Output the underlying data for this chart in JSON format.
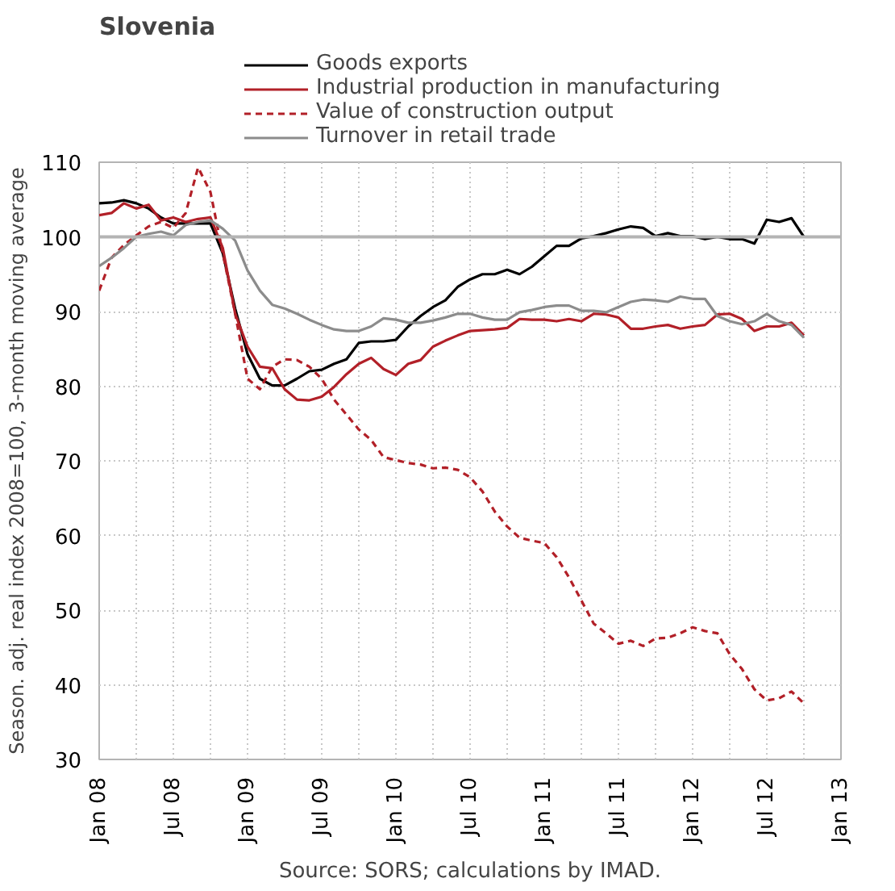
{
  "chart_data": {
    "type": "line",
    "title": "Slovenia",
    "ylabel": "Season. adj. real index 2008=100, 3-month moving average",
    "annotations": [
      "Source: SORS; calculations by IMAD."
    ],
    "x": [
      "2008-01",
      "2008-02",
      "2008-03",
      "2008-04",
      "2008-05",
      "2008-06",
      "2008-07",
      "2008-08",
      "2008-09",
      "2008-10",
      "2008-11",
      "2008-12",
      "2009-01",
      "2009-02",
      "2009-03",
      "2009-04",
      "2009-05",
      "2009-06",
      "2009-07",
      "2009-08",
      "2009-09",
      "2009-10",
      "2009-11",
      "2009-12",
      "2010-01",
      "2010-02",
      "2010-03",
      "2010-04",
      "2010-05",
      "2010-06",
      "2010-07",
      "2010-08",
      "2010-09",
      "2010-10",
      "2010-11",
      "2010-12",
      "2011-01",
      "2011-02",
      "2011-03",
      "2011-04",
      "2011-05",
      "2011-06",
      "2011-07",
      "2011-08",
      "2011-09",
      "2011-10",
      "2011-11",
      "2011-12",
      "2012-01",
      "2012-02",
      "2012-03",
      "2012-04",
      "2012-05",
      "2012-06",
      "2012-07",
      "2012-08",
      "2012-09",
      "2012-10"
    ],
    "series": [
      {
        "name": "Goods exports",
        "color": "#000000",
        "line_style": "solid",
        "values": [
          104.5,
          104.6,
          104.9,
          104.5,
          103.8,
          102.6,
          101.8,
          101.8,
          101.8,
          101.8,
          97.8,
          90.4,
          84.3,
          81,
          80.1,
          80.1,
          81,
          82,
          82.2,
          83,
          83.6,
          85.8,
          86,
          86,
          86.2,
          88,
          89.4,
          90.6,
          91.5,
          93.3,
          94.3,
          95,
          95,
          95.6,
          95,
          96,
          97.4,
          98.8,
          98.8,
          99.8,
          100.1,
          100.5,
          101,
          101.4,
          101.2,
          100.1,
          100.5,
          100.1,
          100.1,
          99.7,
          100,
          99.7,
          99.7,
          99.1,
          102.3,
          102,
          102.5,
          100
        ]
      },
      {
        "name": "Industrial production in manufacturing",
        "color": "#b22028",
        "line_style": "solid",
        "values": [
          102.9,
          103.2,
          104.5,
          103.8,
          104.3,
          102.2,
          102.6,
          102,
          102.4,
          102.6,
          98.5,
          89.7,
          85.3,
          82.6,
          82.4,
          79.6,
          78.2,
          78.1,
          78.6,
          79.9,
          81.6,
          83,
          83.8,
          82.3,
          81.5,
          83,
          83.5,
          85.3,
          86.1,
          86.8,
          87.4,
          87.5,
          87.6,
          87.8,
          89,
          88.9,
          88.9,
          88.7,
          89,
          88.7,
          89.7,
          89.6,
          89.2,
          87.7,
          87.7,
          88,
          88.2,
          87.7,
          88,
          88.2,
          89.6,
          89.7,
          89,
          87.4,
          88,
          88,
          88.5,
          86.8
        ]
      },
      {
        "name": "Value of construction output",
        "color": "#b22028",
        "line_style": "dashed",
        "values": [
          92.8,
          97.2,
          98.9,
          100.2,
          101.4,
          102,
          101.2,
          103.2,
          109.3,
          106,
          97.8,
          89.7,
          81,
          79.6,
          82.6,
          83.6,
          83.5,
          82.6,
          81,
          78.2,
          76.2,
          74.2,
          72.8,
          70.5,
          70.1,
          69.7,
          69.5,
          69,
          69.1,
          68.8,
          67.8,
          65.9,
          63.2,
          61.2,
          59.7,
          59.3,
          59,
          57.1,
          54.4,
          51.3,
          48.2,
          46.9,
          45.5,
          45.9,
          45.2,
          46.2,
          46.3,
          46.9,
          47.7,
          47.2,
          46.9,
          44.1,
          42.1,
          39.4,
          37.9,
          38.2,
          39.1,
          37.5
        ]
      },
      {
        "name": "Turnover in retail trade",
        "color": "#8c8c8c",
        "line_style": "solid",
        "values": [
          96.1,
          97.2,
          98.5,
          100,
          100.4,
          100.7,
          100.2,
          101.6,
          102,
          102.2,
          101.1,
          99.5,
          95.5,
          92.8,
          90.9,
          90.4,
          89.7,
          88.9,
          88.2,
          87.6,
          87.4,
          87.4,
          88,
          89.1,
          88.9,
          88.5,
          88.5,
          88.8,
          89.2,
          89.7,
          89.7,
          89.2,
          88.9,
          88.9,
          89.9,
          90.2,
          90.6,
          90.8,
          90.8,
          90.1,
          90.1,
          89.9,
          90.6,
          91.3,
          91.6,
          91.5,
          91.3,
          92,
          91.7,
          91.7,
          89.4,
          88.7,
          88.3,
          88.7,
          89.7,
          88.7,
          88.2,
          86.5
        ]
      }
    ],
    "xlim": [
      "2008-01",
      "2013-01"
    ],
    "xticks": [
      {
        "value": "2008-01",
        "label": "Jan 08"
      },
      {
        "value": "2008-04",
        "label": null
      },
      {
        "value": "2008-07",
        "label": "Jul 08"
      },
      {
        "value": "2008-10",
        "label": null
      },
      {
        "value": "2009-01",
        "label": "Jan 09"
      },
      {
        "value": "2009-04",
        "label": null
      },
      {
        "value": "2009-07",
        "label": "Jul 09"
      },
      {
        "value": "2009-10",
        "label": null
      },
      {
        "value": "2010-01",
        "label": "Jan 10"
      },
      {
        "value": "2010-04",
        "label": null
      },
      {
        "value": "2010-07",
        "label": "Jul 10"
      },
      {
        "value": "2010-10",
        "label": null
      },
      {
        "value": "2011-01",
        "label": "Jan 11"
      },
      {
        "value": "2011-04",
        "label": null
      },
      {
        "value": "2011-07",
        "label": "Jul 11"
      },
      {
        "value": "2011-10",
        "label": null
      },
      {
        "value": "2012-01",
        "label": "Jan 12"
      },
      {
        "value": "2012-04",
        "label": null
      },
      {
        "value": "2012-07",
        "label": "Jul 12"
      },
      {
        "value": "2012-10",
        "label": null
      },
      {
        "value": "2013-01",
        "label": "Jan 13"
      }
    ],
    "ylim": [
      30,
      110
    ],
    "yticks": [
      30,
      40,
      50,
      60,
      70,
      80,
      90,
      100,
      110
    ],
    "ref_lines": [
      {
        "axis": "y",
        "value": 100,
        "color": "#b4b4b4",
        "line_style": "solid"
      }
    ],
    "grid": true,
    "legend": "top",
    "marker": "none"
  }
}
